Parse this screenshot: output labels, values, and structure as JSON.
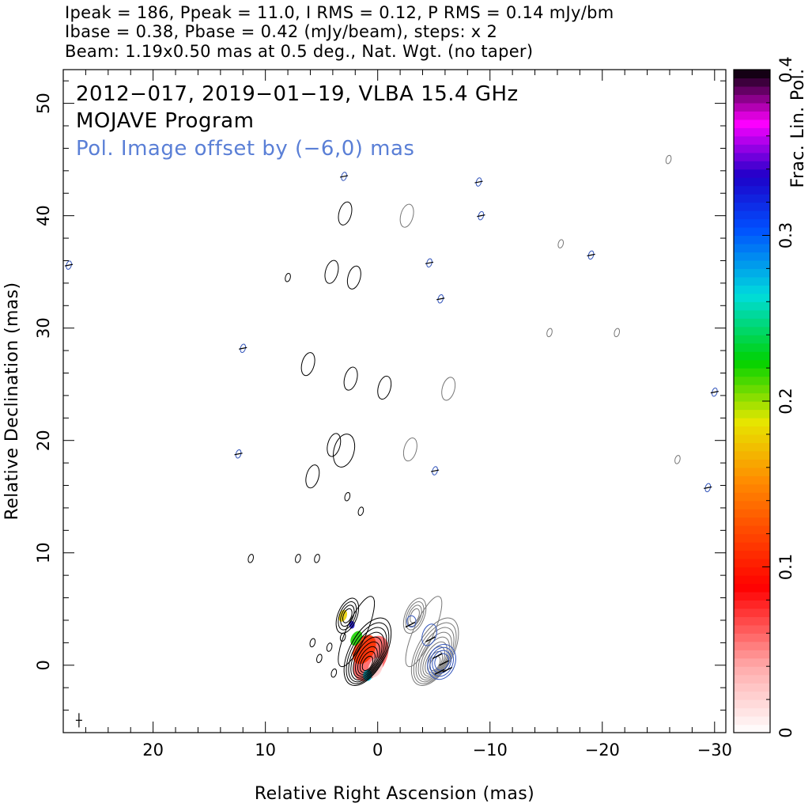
{
  "header": {
    "line1": "Ipeak = 186, Ppeak = 11.0, I RMS = 0.12, P RMS = 0.14 mJy/bm",
    "line2": "Ibase = 0.38, Pbase = 0.42 (mJy/beam), steps: x 2",
    "line3": "Beam: 1.19x0.50 mas at 0.5 deg., Nat. Wgt. (no taper)"
  },
  "annotations": {
    "line1": "2012−017, 2019−01−19, VLBA 15.4 GHz",
    "line2": "MOJAVE Program",
    "line3": "Pol. Image offset by (−6,0) mas"
  },
  "colors": {
    "annotation_blue": "#5a7fd6",
    "contour_total": "#000000",
    "contour_offset": "#777777",
    "contour_pol": "#3355bb"
  },
  "chart_data": {
    "type": "contour",
    "xlabel": "Relative Right Ascension (mas)",
    "ylabel": "Relative Declination (mas)",
    "xlim": [
      28,
      -31
    ],
    "ylim": [
      -6,
      53
    ],
    "x_ticks": [
      20,
      10,
      0,
      -10,
      -20,
      -30
    ],
    "x_tick_labels": [
      "20",
      "10",
      "0",
      "−10",
      "−20",
      "−30"
    ],
    "y_ticks": [
      0,
      10,
      20,
      30,
      40,
      50
    ],
    "y_tick_labels": [
      "0",
      "10",
      "20",
      "30",
      "40",
      "50"
    ],
    "colorbar": {
      "label": "Frac. Lin. Pol.",
      "range": [
        0,
        0.4
      ],
      "ticks": [
        0,
        0.1,
        0.2,
        0.3,
        0.4
      ],
      "tick_labels": [
        "0",
        "0.1",
        "0.2",
        "0.3",
        "0.4"
      ]
    },
    "core": {
      "x": 0,
      "y": 0,
      "peak_mJy_per_beam": 186
    },
    "jet_knot": {
      "x": 3.2,
      "y": 4.5
    },
    "pol_offset_mas": [
      -6,
      0
    ],
    "contour_levels_mJy_per_beam": [
      0.38,
      0.76,
      1.52,
      3.04,
      6.08,
      12.16,
      24.32,
      48.64,
      97.28
    ],
    "isolated_features": [
      {
        "x": 2.9,
        "y": 40.2
      },
      {
        "x": -2.6,
        "y": 40.0
      },
      {
        "x": 3.9,
        "y": 19.6
      },
      {
        "x": -2.9,
        "y": 19.2
      },
      {
        "x": 5.8,
        "y": 16.8
      },
      {
        "x": -0.6,
        "y": 24.7
      },
      {
        "x": -6.3,
        "y": 24.6
      },
      {
        "x": 11.3,
        "y": 9.5
      },
      {
        "x": 5.4,
        "y": 9.5
      },
      {
        "x": 7.1,
        "y": 9.5
      },
      {
        "x": 8.0,
        "y": 34.5
      },
      {
        "x": 4.1,
        "y": 35.0
      },
      {
        "x": 2.1,
        "y": 34.5
      },
      {
        "x": 6.2,
        "y": 26.8
      },
      {
        "x": 2.4,
        "y": 25.5
      },
      {
        "x": -15.3,
        "y": 29.6
      },
      {
        "x": -21.3,
        "y": 29.6
      },
      {
        "x": -16.3,
        "y": 37.5
      },
      {
        "x": -26.7,
        "y": 18.3
      },
      {
        "x": -25.9,
        "y": 45.0
      },
      {
        "x": 2.7,
        "y": 15.0
      },
      {
        "x": 1.5,
        "y": 13.7
      },
      {
        "x": 5.8,
        "y": 2.0
      },
      {
        "x": 4.3,
        "y": 1.6
      },
      {
        "x": 3.1,
        "y": 2.5
      },
      {
        "x": 5.2,
        "y": 0.6
      },
      {
        "x": 3.9,
        "y": -0.7
      }
    ],
    "pol_features": [
      {
        "x": -9.0,
        "y": 43.0
      },
      {
        "x": -9.2,
        "y": 40.0
      },
      {
        "x": -5.6,
        "y": 32.6
      },
      {
        "x": -4.6,
        "y": 35.8
      },
      {
        "x": -5.1,
        "y": 17.3
      },
      {
        "x": -29.4,
        "y": 15.8
      },
      {
        "x": -30.0,
        "y": 24.3
      },
      {
        "x": -19.0,
        "y": 36.5
      },
      {
        "x": 12.0,
        "y": 28.2
      },
      {
        "x": 12.4,
        "y": 18.8
      },
      {
        "x": 3.0,
        "y": 43.5
      },
      {
        "x": 27.5,
        "y": 35.6
      }
    ]
  }
}
